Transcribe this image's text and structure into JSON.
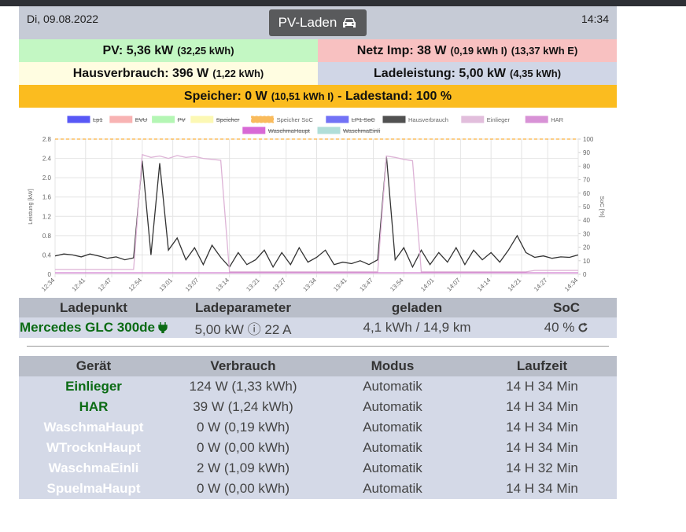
{
  "header": {
    "date": "Di, 09.08.2022",
    "title": "PV-Laden",
    "time": "14:34"
  },
  "status": [
    {
      "bg": "#c3f7c3",
      "parts": [
        {
          "text": "PV: 5,36 kW",
          "small": false
        },
        {
          "text": "(32,25 kWh)",
          "small": true
        }
      ]
    },
    {
      "bg": "#f8c1c1",
      "parts": [
        {
          "text": "Netz Imp: 38 W",
          "small": false
        },
        {
          "text": "(0,19 kWh I)",
          "small": true
        },
        {
          "text": "(13,37 kWh E)",
          "small": true
        }
      ]
    },
    {
      "bg": "#fffde1",
      "parts": [
        {
          "text": "Hausverbrauch: 396 W",
          "small": false
        },
        {
          "text": "(1,22 kWh)",
          "small": true
        }
      ]
    },
    {
      "bg": "#d0d6e6",
      "parts": [
        {
          "text": "Ladeleistung: 5,00 kW",
          "small": false
        },
        {
          "text": "(4,35 kWh)",
          "small": true
        }
      ]
    },
    {
      "bg": "#fbbc1f",
      "parts": [
        {
          "text": "Speicher: 0 W",
          "small": false
        },
        {
          "text": "(10,51 kWh I)",
          "small": true
        },
        {
          "text": "- Ladestand: 100 %",
          "small": false
        }
      ]
    }
  ],
  "chart_data": {
    "type": "line",
    "y_label": "Leistung [kW]",
    "y2_label": "SoC [%]",
    "grid": true,
    "x": [
      0,
      2,
      4,
      6,
      8,
      10,
      12,
      14,
      16,
      18,
      20,
      22,
      24,
      26,
      28,
      30,
      32,
      34,
      36,
      38,
      40,
      42,
      44,
      46,
      48,
      50,
      52,
      54,
      56,
      58,
      60,
      62,
      64,
      66,
      68,
      70,
      72,
      74,
      76,
      78,
      80,
      82,
      84,
      86,
      88,
      90,
      92,
      94,
      96,
      98,
      100,
      102,
      104,
      106,
      108,
      110,
      112,
      114,
      116,
      118,
      120
    ],
    "xlim": [
      0,
      120
    ],
    "xticks": [
      {
        "value": 0,
        "label": "12:34"
      },
      {
        "value": 7,
        "label": "12:41"
      },
      {
        "value": 13,
        "label": "12:47"
      },
      {
        "value": 20,
        "label": "12:54"
      },
      {
        "value": 27,
        "label": "13:01"
      },
      {
        "value": 33,
        "label": "13:07"
      },
      {
        "value": 40,
        "label": "13:14"
      },
      {
        "value": 47,
        "label": "13:21"
      },
      {
        "value": 53,
        "label": "13:27"
      },
      {
        "value": 60,
        "label": "13:34"
      },
      {
        "value": 67,
        "label": "13:41"
      },
      {
        "value": 73,
        "label": "13:47"
      },
      {
        "value": 80,
        "label": "13:54"
      },
      {
        "value": 87,
        "label": "14:01"
      },
      {
        "value": 93,
        "label": "14:07"
      },
      {
        "value": 100,
        "label": "14:14"
      },
      {
        "value": 107,
        "label": "14:21"
      },
      {
        "value": 113,
        "label": "14:27"
      },
      {
        "value": 120,
        "label": "14:34"
      }
    ],
    "ylim": [
      0,
      2.8
    ],
    "yticks": [
      0,
      0.4,
      0.8,
      1.2,
      1.6,
      {
        "value": 2,
        "label": "2.0"
      },
      2.4,
      2.8
    ],
    "y2lim": [
      0,
      100
    ],
    "y2ticks": [
      0,
      10,
      20,
      30,
      40,
      50,
      60,
      70,
      80,
      90,
      100
    ],
    "series": [
      {
        "name": "Lp1",
        "color": "#3b3bf5",
        "hidden": true
      },
      {
        "name": "EVU",
        "color": "#f7a6a6",
        "hidden": true
      },
      {
        "name": "PV",
        "color": "#a8f5a8",
        "hidden": true
      },
      {
        "name": "Speicher",
        "color": "#fcf7a8",
        "hidden": true
      },
      {
        "name": "Speicher SoC",
        "color": "#f9b040",
        "hidden": false,
        "dashed": true,
        "axis": "y2",
        "values": [
          100,
          100,
          100,
          100,
          100,
          100,
          100,
          100,
          100,
          100,
          100,
          100,
          100,
          100,
          100,
          100,
          100,
          100,
          100,
          100,
          100,
          100,
          100,
          100,
          100,
          100,
          100,
          100,
          100,
          100,
          100,
          100,
          100,
          100,
          100,
          100,
          100,
          100,
          100,
          100,
          100,
          100,
          100,
          100,
          100,
          100,
          100,
          100,
          100,
          100,
          100,
          100,
          100,
          100,
          100,
          100,
          100,
          100,
          100,
          100,
          100
        ]
      },
      {
        "name": "LP1 SoC",
        "color": "#5a5af5",
        "hidden": true
      },
      {
        "name": "Hausverbrauch",
        "color": "#333333",
        "hidden": false,
        "values": [
          0.38,
          0.42,
          0.4,
          0.36,
          0.42,
          0.38,
          0.33,
          0.36,
          0.3,
          0.34,
          2.35,
          0.4,
          2.3,
          0.5,
          0.75,
          0.3,
          0.55,
          0.2,
          0.6,
          0.35,
          0.15,
          0.45,
          0.2,
          0.3,
          0.5,
          0.15,
          0.45,
          0.2,
          0.55,
          0.25,
          0.35,
          0.5,
          0.2,
          0.25,
          0.22,
          0.28,
          0.2,
          0.3,
          2.45,
          0.3,
          0.55,
          0.15,
          0.5,
          0.2,
          0.45,
          0.25,
          0.55,
          0.2,
          0.5,
          0.3,
          0.45,
          0.25,
          0.5,
          0.8,
          0.45,
          0.35,
          0.38,
          0.33,
          0.36,
          0.35,
          0.4
        ]
      },
      {
        "name": "Einlieger",
        "color": "#ddb3d6",
        "hidden": false,
        "values": [
          0.1,
          0.1,
          0.1,
          0.1,
          0.1,
          0.1,
          0.1,
          0.1,
          0.1,
          0.1,
          2.48,
          2.42,
          2.45,
          2.4,
          2.46,
          2.42,
          2.44,
          2.4,
          2.38,
          2.36,
          0.05,
          0.05,
          0.05,
          0.05,
          0.05,
          0.05,
          0.05,
          0.05,
          0.05,
          0.05,
          0.05,
          0.05,
          0.05,
          0.05,
          0.05,
          0.05,
          0.05,
          0.05,
          2.45,
          2.42,
          2.38,
          2.35,
          0.05,
          0.05,
          0.05,
          0.05,
          0.05,
          0.05,
          0.05,
          0.05,
          0.05,
          0.05,
          0.05,
          0.05,
          0.05,
          0.08,
          0.08,
          0.08,
          0.08,
          0.08,
          0.08
        ]
      },
      {
        "name": "HAR",
        "color": "#d27fd0",
        "hidden": false,
        "values": [
          0.03,
          0.03,
          0.03,
          0.03,
          0.03,
          0.03,
          0.03,
          0.03,
          0.03,
          0.03,
          0.03,
          0.03,
          0.03,
          0.03,
          0.03,
          0.03,
          0.03,
          0.03,
          0.03,
          0.03,
          0.03,
          0.03,
          0.03,
          0.03,
          0.03,
          0.03,
          0.03,
          0.03,
          0.03,
          0.03,
          0.03,
          0.03,
          0.03,
          0.03,
          0.03,
          0.03,
          0.03,
          0.03,
          0.03,
          0.03,
          0.03,
          0.03,
          0.03,
          0.03,
          0.03,
          0.03,
          0.03,
          0.03,
          0.03,
          0.03,
          0.03,
          0.03,
          0.03,
          0.03,
          0.03,
          0.03,
          0.03,
          0.03,
          0.03,
          0.03,
          0.03
        ]
      },
      {
        "name": "WaschmaHaupt",
        "color": "#d24fd0",
        "hidden": true
      },
      {
        "name": "WaschmaEinli",
        "color": "#a3d9d2",
        "hidden": true
      }
    ]
  },
  "loadpoints": {
    "header": [
      "Ladepunkt",
      "Ladeparameter",
      "geladen",
      "SoC"
    ],
    "rows": [
      [
        "Mercedes GLC 300de",
        "5,00 kW ⓘ 22 A",
        "4,1 kWh / 14,9 km",
        "40 %"
      ]
    ]
  },
  "devices": {
    "header": [
      "Gerät",
      "Verbrauch",
      "Modus",
      "Laufzeit"
    ],
    "rows": [
      {
        "name_color": "#0b6b14",
        "cells": [
          "Einlieger",
          "124 W (1,33 kWh)",
          "Automatik",
          "14 H 34 Min"
        ]
      },
      {
        "name_color": "#0b6b14",
        "cells": [
          "HAR",
          "39 W (1,24 kWh)",
          "Automatik",
          "14 H 34 Min"
        ]
      },
      {
        "name_color": "#ffffff",
        "cells": [
          "WaschmaHaupt",
          "0 W (0,19 kWh)",
          "Automatik",
          "14 H 34 Min"
        ]
      },
      {
        "name_color": "#ffffff",
        "cells": [
          "WTrocknHaupt",
          "0 W (0,00 kWh)",
          "Automatik",
          "14 H 34 Min"
        ]
      },
      {
        "name_color": "#ffffff",
        "cells": [
          "WaschmaEinli",
          "2 W (1,09 kWh)",
          "Automatik",
          "14 H 32 Min"
        ]
      },
      {
        "name_color": "#ffffff",
        "cells": [
          "SpuelmaHaupt",
          "0 W (0,00 kWh)",
          "Automatik",
          "14 H 34 Min"
        ]
      }
    ]
  }
}
